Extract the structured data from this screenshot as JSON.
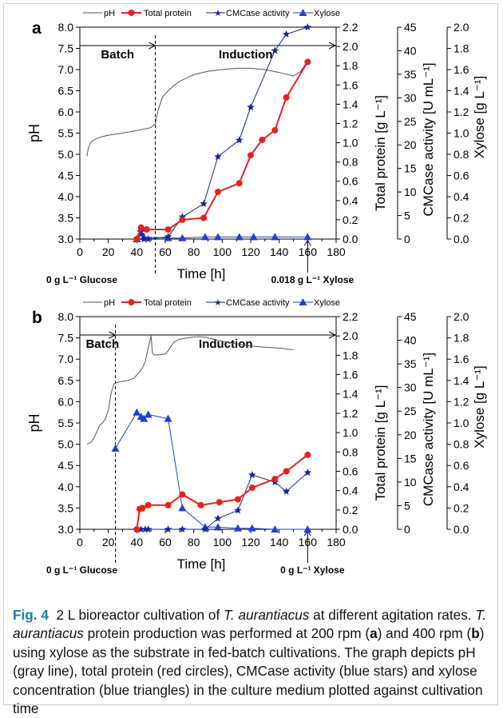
{
  "colors": {
    "ph": "#555555",
    "protein": "#e8211c",
    "cmcase": "#16249a",
    "xylose": "#1f3fd8",
    "caption_label": "#1b7ea5"
  },
  "legend": {
    "ph": "pH",
    "protein": "Total protein",
    "cmcase": "CMCase activity",
    "xylose": "Xylose"
  },
  "axes": {
    "xlabel": "Time [h]",
    "ph_label": "pH",
    "protein_label": "Total protein [g L⁻¹]",
    "cmcase_label": "CMCase activity [U mL⁻¹]",
    "xylose_label": "Xylose [g L⁻¹]",
    "x_ticks": [
      "0",
      "20",
      "40",
      "60",
      "80",
      "100",
      "120",
      "140",
      "160",
      "180"
    ],
    "ph_ticks": [
      "3.0",
      "3.5",
      "4.0",
      "4.5",
      "5.0",
      "5.5",
      "6.0",
      "6.5",
      "7.0",
      "7.5",
      "8.0"
    ],
    "protein_ticks": [
      "0.0",
      "0.2",
      "0.4",
      "0.6",
      "0.8",
      "1.0",
      "1.2",
      "1.4",
      "1.6",
      "1.8",
      "2.0",
      "2.2"
    ],
    "cmcase_ticks": [
      "0",
      "5",
      "10",
      "15",
      "20",
      "25",
      "30",
      "35",
      "40",
      "45"
    ],
    "xylose_ticks": [
      "0.0",
      "0.2",
      "0.4",
      "0.6",
      "0.8",
      "1.0",
      "1.2",
      "1.4",
      "1.6",
      "1.8",
      "2.0"
    ]
  },
  "chart_data": [
    {
      "panel": "a",
      "type": "line",
      "xlabel": "Time [h]",
      "phases": [
        "Batch",
        "Induction"
      ],
      "phase_boundary_h": 53,
      "xlim": [
        0,
        180
      ],
      "ylims": {
        "ph": [
          3.0,
          8.0
        ],
        "protein": [
          0.0,
          2.2
        ],
        "cmcase": [
          0,
          45
        ],
        "xylose": [
          0.0,
          2.0
        ]
      },
      "annotations": {
        "left": "0 g L⁻¹ Glucose",
        "right": "0.018 g L⁻¹ Xylose"
      },
      "ph_curve": [
        [
          5,
          4.95
        ],
        [
          6,
          5.15
        ],
        [
          8,
          5.3
        ],
        [
          12,
          5.38
        ],
        [
          16,
          5.42
        ],
        [
          20,
          5.45
        ],
        [
          30,
          5.5
        ],
        [
          40,
          5.56
        ],
        [
          50,
          5.63
        ],
        [
          53,
          5.72
        ],
        [
          55,
          6.05
        ],
        [
          58,
          6.35
        ],
        [
          62,
          6.5
        ],
        [
          66,
          6.62
        ],
        [
          70,
          6.72
        ],
        [
          75,
          6.8
        ],
        [
          80,
          6.88
        ],
        [
          90,
          6.96
        ],
        [
          100,
          7.0
        ],
        [
          110,
          7.03
        ],
        [
          120,
          7.03
        ],
        [
          130,
          7.0
        ],
        [
          140,
          6.93
        ],
        [
          150,
          6.85
        ],
        [
          155,
          6.95
        ],
        [
          160,
          7.2
        ]
      ],
      "protein": [
        [
          40,
          0.0
        ],
        [
          43,
          0.12
        ],
        [
          47,
          0.1
        ],
        [
          62,
          0.1
        ],
        [
          72,
          0.2
        ],
        [
          87,
          0.22
        ],
        [
          97,
          0.49
        ],
        [
          112,
          0.58
        ],
        [
          120,
          0.87
        ],
        [
          128,
          1.03
        ],
        [
          137,
          1.13
        ],
        [
          145,
          1.47
        ],
        [
          160,
          1.84
        ]
      ],
      "cmcase": [
        [
          40,
          0
        ],
        [
          43,
          1
        ],
        [
          45,
          0
        ],
        [
          48,
          0
        ],
        [
          62,
          0.5
        ],
        [
          72,
          4.7
        ],
        [
          87,
          7.5
        ],
        [
          97,
          17.5
        ],
        [
          112,
          21
        ],
        [
          120,
          28
        ],
        [
          137,
          40
        ],
        [
          145,
          43.5
        ],
        [
          160,
          45
        ]
      ],
      "xylose": [
        [
          40,
          0.0
        ],
        [
          43,
          0.1
        ],
        [
          45,
          0.02
        ],
        [
          62,
          0.01
        ],
        [
          72,
          0.01
        ],
        [
          88,
          0.02
        ],
        [
          97,
          0.02
        ],
        [
          112,
          0.02
        ],
        [
          122,
          0.02
        ],
        [
          137,
          0.02
        ],
        [
          160,
          0.02
        ]
      ]
    },
    {
      "panel": "b",
      "type": "line",
      "xlabel": "Time [h]",
      "phases": [
        "Batch",
        "Induction"
      ],
      "phase_boundary_h": 25,
      "xlim": [
        0,
        180
      ],
      "ylims": {
        "ph": [
          3.0,
          8.0
        ],
        "protein": [
          0.0,
          2.2
        ],
        "cmcase": [
          0,
          45
        ],
        "xylose": [
          0.0,
          2.0
        ]
      },
      "annotations": {
        "left": "0 g L⁻¹ Glucose",
        "right": "0 g L⁻¹ Xylose"
      },
      "ph_curve": [
        [
          5,
          5.0
        ],
        [
          8,
          5.05
        ],
        [
          10,
          5.15
        ],
        [
          12,
          5.3
        ],
        [
          14,
          5.45
        ],
        [
          16,
          5.5
        ],
        [
          18,
          5.6
        ],
        [
          20,
          5.8
        ],
        [
          22,
          6.2
        ],
        [
          24,
          6.42
        ],
        [
          26,
          6.45
        ],
        [
          30,
          6.48
        ],
        [
          34,
          6.5
        ],
        [
          38,
          6.55
        ],
        [
          42,
          6.7
        ],
        [
          44,
          6.8
        ],
        [
          46,
          6.95
        ],
        [
          48,
          7.25
        ],
        [
          49,
          7.4
        ],
        [
          50,
          7.55
        ],
        [
          51,
          7.15
        ],
        [
          52,
          7.1
        ],
        [
          55,
          7.1
        ],
        [
          60,
          7.12
        ],
        [
          62,
          7.2
        ],
        [
          66,
          7.4
        ],
        [
          70,
          7.47
        ],
        [
          75,
          7.5
        ],
        [
          80,
          7.52
        ],
        [
          85,
          7.53
        ],
        [
          90,
          7.5
        ],
        [
          100,
          7.42
        ],
        [
          110,
          7.36
        ],
        [
          120,
          7.31
        ],
        [
          130,
          7.28
        ],
        [
          140,
          7.26
        ],
        [
          150,
          7.22
        ]
      ],
      "protein": [
        [
          40,
          0.0
        ],
        [
          42,
          0.21
        ],
        [
          44,
          0.22
        ],
        [
          48,
          0.25
        ],
        [
          62,
          0.25
        ],
        [
          72,
          0.36
        ],
        [
          85,
          0.25
        ],
        [
          98,
          0.28
        ],
        [
          111,
          0.31
        ],
        [
          121,
          0.43
        ],
        [
          137,
          0.52
        ],
        [
          145,
          0.6
        ],
        [
          160,
          0.77
        ]
      ],
      "cmcase": [
        [
          40,
          0
        ],
        [
          43,
          0
        ],
        [
          46,
          0
        ],
        [
          48,
          0
        ],
        [
          62,
          0
        ],
        [
          72,
          0
        ],
        [
          88,
          0
        ],
        [
          97,
          2.3
        ],
        [
          111,
          4
        ],
        [
          121,
          11.5
        ],
        [
          137,
          10
        ],
        [
          145,
          8
        ],
        [
          160,
          12
        ]
      ],
      "xylose": [
        [
          25,
          0.76
        ],
        [
          40,
          1.1
        ],
        [
          43,
          1.06
        ],
        [
          45,
          1.04
        ],
        [
          48,
          1.08
        ],
        [
          62,
          1.04
        ],
        [
          72,
          0.2
        ],
        [
          88,
          0.02
        ],
        [
          97,
          0.02
        ],
        [
          111,
          0.01
        ],
        [
          121,
          0.01
        ],
        [
          137,
          0.0
        ],
        [
          160,
          0.0
        ]
      ]
    }
  ],
  "caption": {
    "label": "Fig. 4",
    "line1": "2 L bioreactor cultivation of",
    "organism": "T. aurantiacus",
    "line1_end": "at different agitation rates.",
    "organism2": "T. aurantiacus",
    "line2": "protein production was performed at 200 rpm (",
    "a": "a",
    "line3": ") and 400 rpm (",
    "b": "b",
    "line4": ") using xylose as the substrate in fed-batch cultivations. The graph depicts pH (gray line), total protein (red circles), CMCase activity (blue stars) and xylose concentration (blue triangles) in the culture medium plotted against cultivation time"
  }
}
